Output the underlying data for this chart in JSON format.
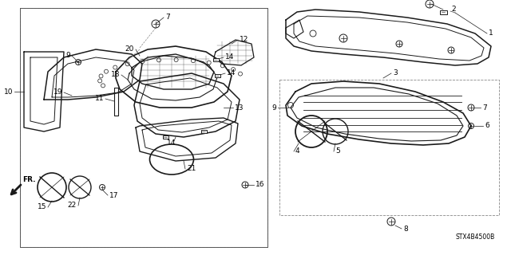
{
  "bg": "#ffffff",
  "lc": "#1a1a1a",
  "tc": "#000000",
  "dpi": 100,
  "fw": 6.4,
  "fh": 3.2,
  "diagram_code": "STX4B4500B"
}
